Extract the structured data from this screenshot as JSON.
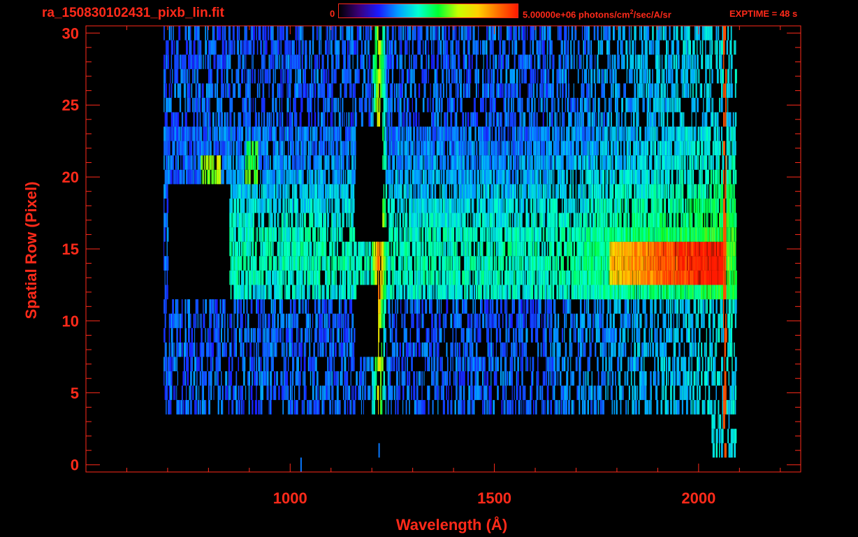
{
  "header": {
    "filename": "ra_150830102431_pixb_lin.fit",
    "colorbar_min": "0",
    "colorbar_max": "5.00000e+06 photons/cm",
    "colorbar_max_exp": "2",
    "colorbar_max_unit": "/sec/A/sr",
    "exptime": "EXPTIME = 48 s"
  },
  "colors": {
    "axis": "#ff2a1a",
    "background": "#000000",
    "colormap": [
      "#000000",
      "#3a0078",
      "#1a1aff",
      "#00a0ff",
      "#00ffd0",
      "#00ff30",
      "#c8ff00",
      "#ffd000",
      "#ff7000",
      "#ff1a00"
    ]
  },
  "chart_data": {
    "type": "heatmap",
    "title": "",
    "xlabel": "Wavelength (Å)",
    "ylabel": "Spatial Row (Pixel)",
    "xlim": [
      500,
      2250
    ],
    "ylim": [
      -0.5,
      30.5
    ],
    "xticks": [
      "1000",
      "1500",
      "2000"
    ],
    "yticks": [
      "0",
      "5",
      "10",
      "15",
      "20",
      "25",
      "30"
    ],
    "x_minor_step": 100,
    "y_minor_step": 1,
    "value_range": [
      0,
      5000000
    ],
    "features": {
      "row_extent_by_range": [
        {
          "x": [
            690,
            2090
          ],
          "rows": [
            4,
            30
          ]
        },
        {
          "x": [
            2030,
            2090
          ],
          "rows": [
            1,
            4
          ]
        }
      ],
      "bright_band_rows": [
        13,
        15
      ],
      "bright_band_x": [
        1780,
        2060
      ],
      "lya_line_x": 1216,
      "sharp_edge_x": 2063,
      "masked_regions": [
        {
          "x": [
            700,
            850
          ],
          "rows": [
            12,
            19
          ]
        },
        {
          "x": [
            1160,
            1225
          ],
          "rows": [
            16,
            23
          ]
        },
        {
          "x": [
            1160,
            1215
          ],
          "rows": [
            8,
            12
          ]
        }
      ]
    }
  }
}
